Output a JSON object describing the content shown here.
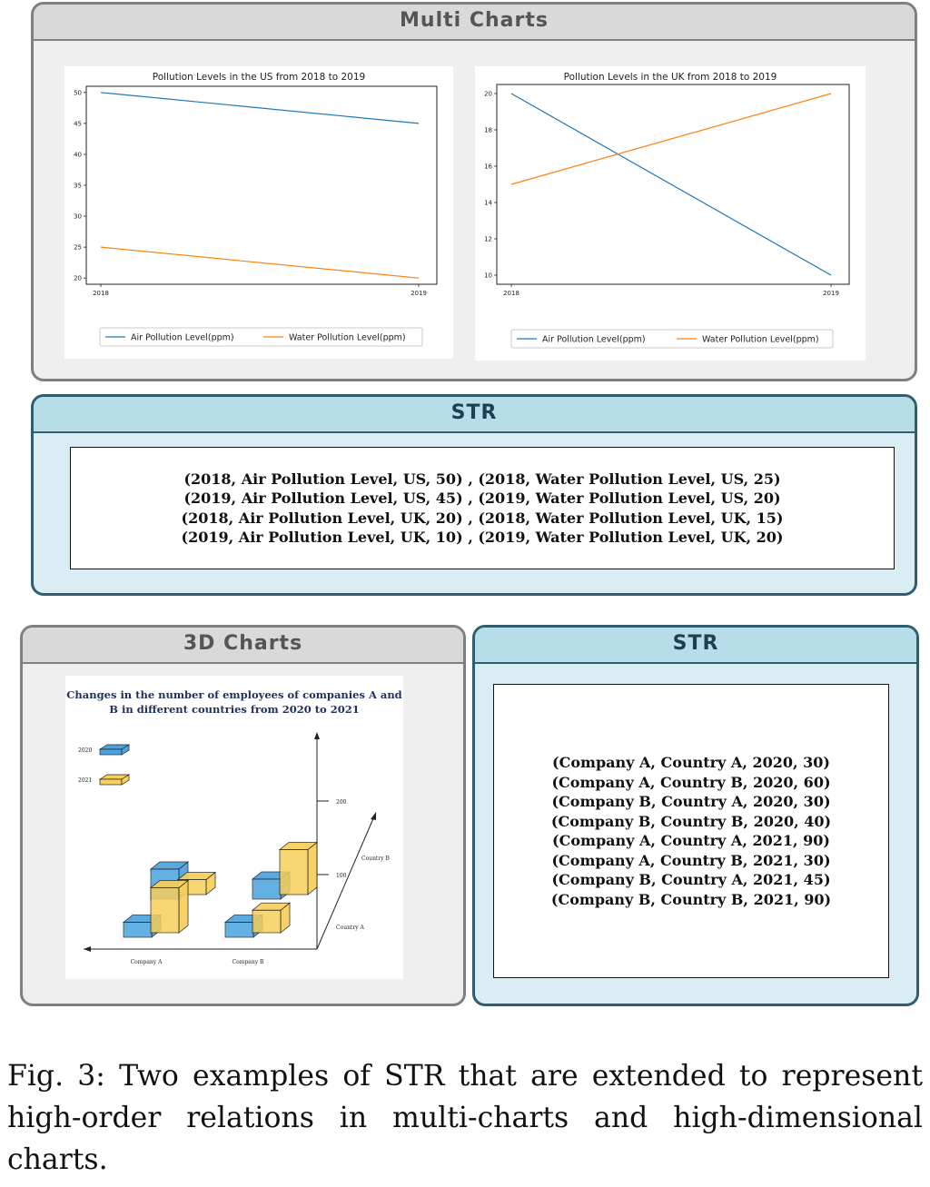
{
  "multi_panel": {
    "title": "Multi Charts"
  },
  "str_panel_1": {
    "title": "STR",
    "lines": [
      "(2018, Air Pollution Level, US, 50) , (2018, Water Pollution Level, US, 25)",
      "(2019, Air Pollution Level, US, 45) , (2019, Water Pollution Level, US, 20)",
      "(2018, Air Pollution Level, UK, 20) , (2018, Water Pollution Level, UK, 15)",
      "(2019, Air Pollution Level, UK, 10) , (2019, Water Pollution Level, UK, 20)"
    ]
  },
  "d3_panel": {
    "title": "3D Charts"
  },
  "str_panel_2": {
    "title": "STR",
    "lines": [
      "(Company A, Country A, 2020, 30)",
      "(Company A, Country B, 2020, 60)",
      "(Company B, Country A, 2020, 30)",
      "(Company B, Country B, 2020, 40)",
      "(Company A, Country A, 2021, 90)",
      "(Company A, Country B, 2021, 30)",
      "(Company B, Country A, 2021, 45)",
      "(Company B, Country B, 2021, 90)"
    ]
  },
  "caption": "Fig. 3: Two examples of STR that are extended to represent high-order relations in multi-charts and high-dimensional charts.",
  "colors": {
    "air": "#1f77b4",
    "water": "#ff7f0e",
    "bar2020": "#4aa3df",
    "bar2021": "#f7cf5a"
  },
  "chart_data": [
    {
      "type": "line",
      "title": "Pollution Levels in the US from 2018 to 2019",
      "x": [
        "2018",
        "2019"
      ],
      "series": [
        {
          "name": "Air Pollution Level(ppm)",
          "values": [
            50,
            45
          ]
        },
        {
          "name": "Water Pollution Level(ppm)",
          "values": [
            25,
            20
          ]
        }
      ],
      "ylim": [
        19,
        51
      ],
      "yticks": [
        20,
        25,
        30,
        35,
        40,
        45,
        50
      ],
      "legend": "bottom-center"
    },
    {
      "type": "line",
      "title": "Pollution Levels in the UK from 2018 to 2019",
      "x": [
        "2018",
        "2019"
      ],
      "series": [
        {
          "name": "Air Pollution Level(ppm)",
          "values": [
            20,
            10
          ]
        },
        {
          "name": "Water Pollution Level(ppm)",
          "values": [
            15,
            20
          ]
        }
      ],
      "ylim": [
        9.5,
        20.5
      ],
      "yticks": [
        10,
        12,
        14,
        16,
        18,
        20
      ],
      "legend": "bottom-center"
    },
    {
      "type": "bar",
      "title": "Changes in the number of employees of companies A and B in different countries from 2020 to 2021",
      "categories": [
        "Company A",
        "Company B"
      ],
      "depth_categories": [
        "Country A",
        "Country B"
      ],
      "zticks": [
        100,
        200
      ],
      "series": [
        {
          "name": "2020",
          "values": {
            "Company A|Country A": 30,
            "Company A|Country B": 60,
            "Company B|Country A": 30,
            "Company B|Country B": 40
          }
        },
        {
          "name": "2021",
          "values": {
            "Company A|Country A": 90,
            "Company A|Country B": 30,
            "Company B|Country A": 45,
            "Company B|Country B": 90
          }
        }
      ],
      "legend": "top-left"
    }
  ]
}
